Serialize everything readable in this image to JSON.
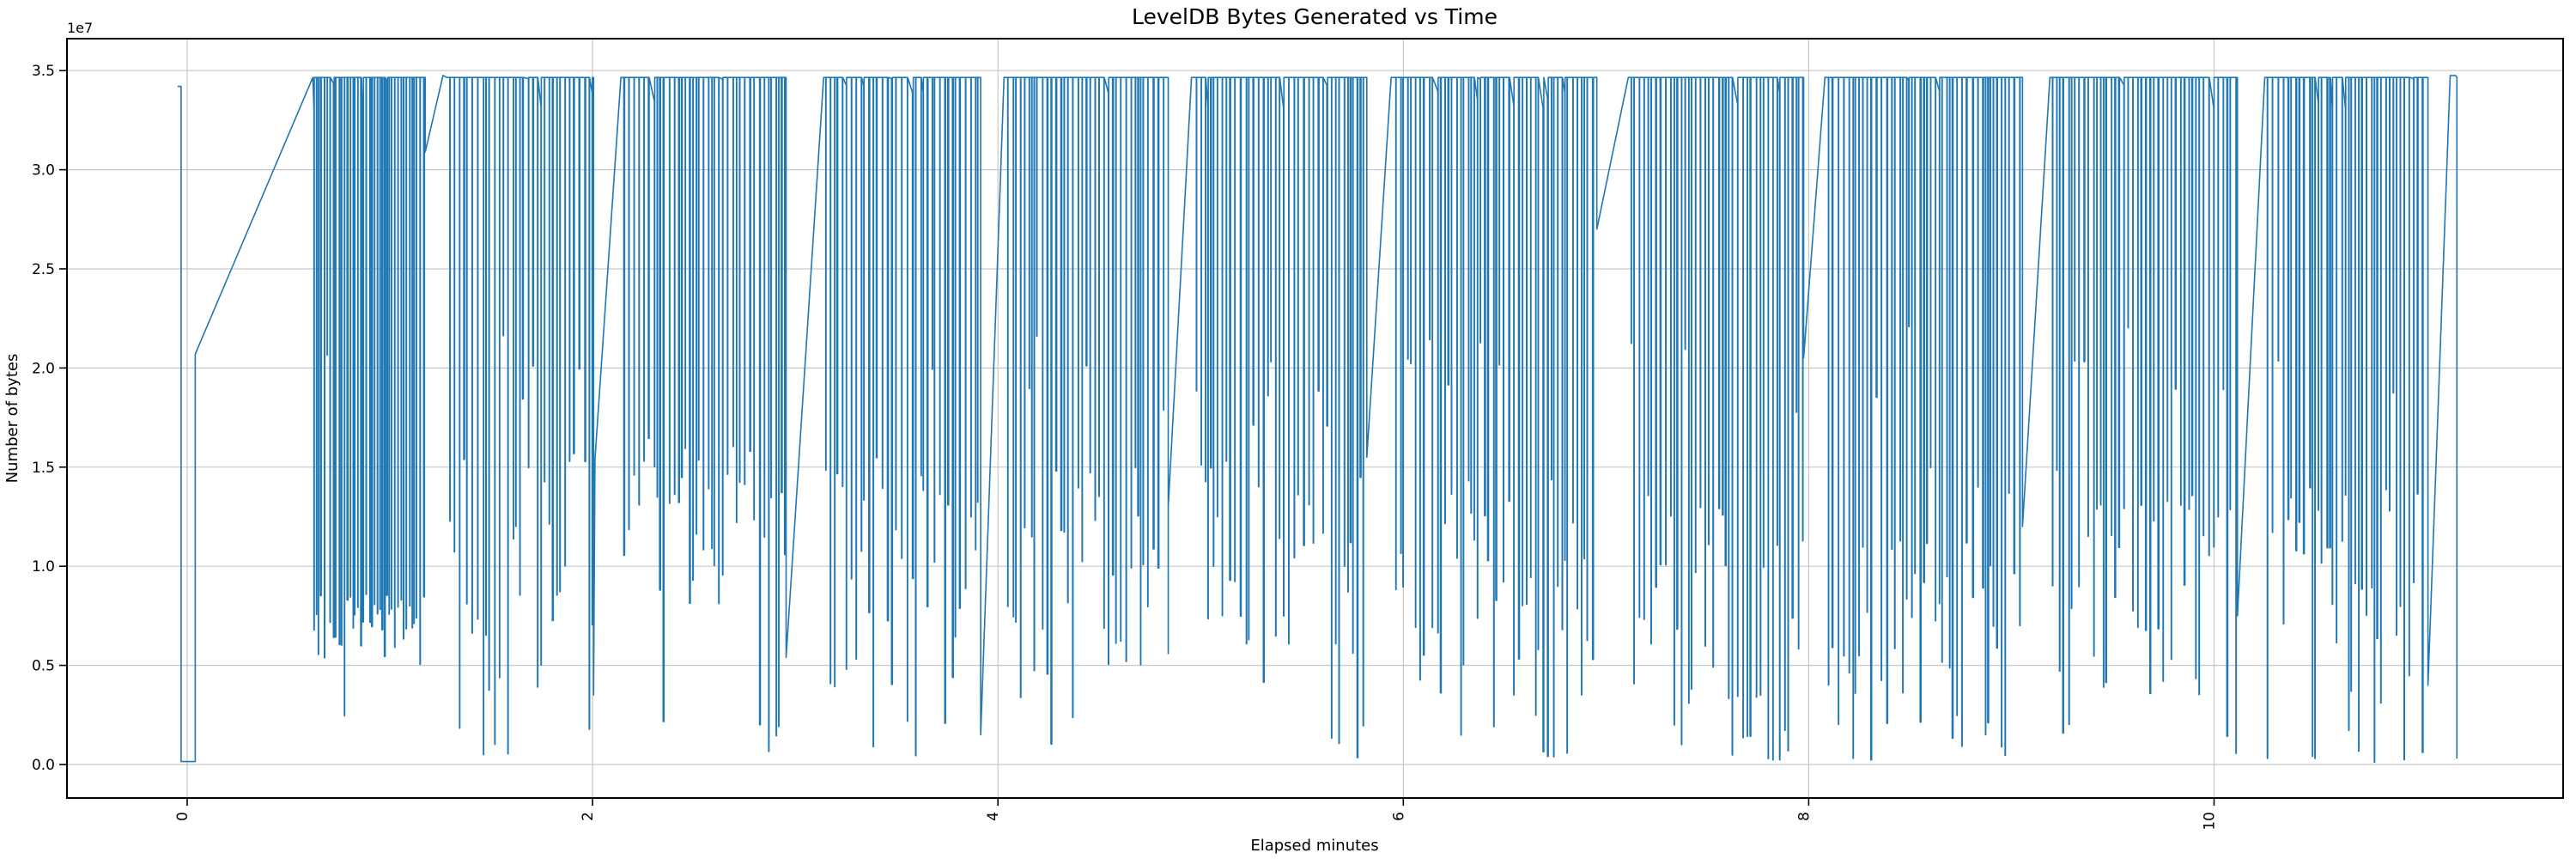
{
  "chart_data": {
    "type": "line",
    "title": "LevelDB Bytes Generated vs Time",
    "xlabel": "Elapsed minutes",
    "ylabel": "Number of bytes",
    "y_offset_label": "1e7",
    "legend": null,
    "grid": true,
    "xlim": [
      -0.593,
      11.722
    ],
    "ylim": [
      -1689000,
      36610000
    ],
    "x_tick_values": [
      0,
      2,
      4,
      6,
      8,
      10
    ],
    "x_tick_labels": [
      "0",
      "2",
      "4",
      "6",
      "8",
      "10"
    ],
    "x_tick_rotation_deg": 90,
    "y_tick_values": [
      0,
      5000000,
      10000000,
      15000000,
      20000000,
      25000000,
      30000000,
      35000000
    ],
    "y_tick_labels": [
      "0.0",
      "0.5",
      "1.0",
      "1.5",
      "2.0",
      "2.5",
      "3.0",
      "3.5"
    ],
    "line_color": "#1f77b4",
    "grid_color": "#c8c8c8",
    "spine_color": "#000000",
    "background_color": "#ffffff",
    "peak_value": 34650000,
    "random_seed": 7,
    "series_name": "bytes generated",
    "series_segments": [
      {
        "type": "points",
        "pts": [
          [
            -0.047,
            34200000
          ],
          [
            -0.03,
            34200000
          ],
          [
            -0.03,
            150000
          ],
          [
            0.04,
            150000
          ],
          [
            0.04,
            20700000
          ],
          [
            0.62,
            34650000
          ]
        ]
      },
      {
        "type": "dense",
        "x0": 0.62,
        "x1": 1.175,
        "rate": 78,
        "low": [
          4800000,
          8600000
        ],
        "p_deep": 0.07,
        "deep": [
          200000,
          3500000
        ],
        "p_shallow": 0.02,
        "shallow": [
          17000000,
          21000000
        ]
      },
      {
        "type": "points",
        "pts": [
          [
            1.175,
            30900000
          ],
          [
            1.262,
            34750000
          ],
          [
            1.282,
            34650000
          ]
        ]
      },
      {
        "type": "dense",
        "x0": 1.282,
        "x1": 2.005,
        "rate": 52,
        "low": [
          3000000,
          16000000
        ],
        "p_deep": 0.15,
        "deep": [
          100000,
          2500000
        ],
        "p_shallow": 0.1,
        "shallow": [
          17000000,
          23000000
        ]
      },
      {
        "type": "points",
        "pts": [
          [
            2.005,
            3500000
          ],
          [
            2.012,
            15400000
          ],
          [
            2.14,
            34650000
          ]
        ]
      },
      {
        "type": "dense",
        "x0": 2.14,
        "x1": 2.955,
        "rate": 52,
        "low": [
          8000000,
          16500000
        ],
        "p_deep": 0.16,
        "deep": [
          100000,
          3000000
        ],
        "p_shallow": 0.06,
        "shallow": [
          17500000,
          22500000
        ]
      },
      {
        "type": "points",
        "pts": [
          [
            2.955,
            5400000
          ],
          [
            3.14,
            34650000
          ]
        ]
      },
      {
        "type": "dense",
        "x0": 3.14,
        "x1": 3.915,
        "rate": 52,
        "low": [
          3000000,
          15500000
        ],
        "p_deep": 0.14,
        "deep": [
          100000,
          2500000
        ],
        "p_shallow": 0.08,
        "shallow": [
          17000000,
          23000000
        ]
      },
      {
        "type": "points",
        "pts": [
          [
            3.915,
            1500000
          ],
          [
            4.03,
            34650000
          ]
        ]
      },
      {
        "type": "dense",
        "x0": 4.03,
        "x1": 4.84,
        "rate": 52,
        "low": [
          3000000,
          15000000
        ],
        "p_deep": 0.13,
        "deep": [
          100000,
          2500000
        ],
        "p_shallow": 0.08,
        "shallow": [
          17000000,
          22500000
        ]
      },
      {
        "type": "points",
        "pts": [
          [
            4.84,
            13000000
          ],
          [
            4.955,
            34650000
          ]
        ]
      },
      {
        "type": "dense",
        "x0": 4.955,
        "x1": 5.82,
        "rate": 52,
        "low": [
          4000000,
          15500000
        ],
        "p_deep": 0.14,
        "deep": [
          100000,
          2500000
        ],
        "p_shallow": 0.07,
        "shallow": [
          17000000,
          22500000
        ]
      },
      {
        "type": "points",
        "pts": [
          [
            5.82,
            15500000
          ],
          [
            5.94,
            34650000
          ]
        ]
      },
      {
        "type": "dense",
        "x0": 5.94,
        "x1": 6.955,
        "rate": 52,
        "low": [
          3500000,
          14500000
        ],
        "p_deep": 0.13,
        "deep": [
          100000,
          2500000
        ],
        "p_shallow": 0.09,
        "shallow": [
          17000000,
          23000000
        ]
      },
      {
        "type": "points",
        "pts": [
          [
            6.955,
            27000000
          ],
          [
            7.11,
            34650000
          ]
        ]
      },
      {
        "type": "dense",
        "x0": 7.11,
        "x1": 7.975,
        "rate": 52,
        "low": [
          3000000,
          14000000
        ],
        "p_deep": 0.2,
        "deep": [
          100000,
          2000000
        ],
        "p_shallow": 0.07,
        "shallow": [
          17000000,
          22000000
        ]
      },
      {
        "type": "points",
        "pts": [
          [
            7.975,
            20500000
          ],
          [
            8.08,
            34650000
          ]
        ]
      },
      {
        "type": "dense",
        "x0": 8.08,
        "x1": 9.055,
        "rate": 52,
        "low": [
          3500000,
          15000000
        ],
        "p_deep": 0.16,
        "deep": [
          100000,
          2500000
        ],
        "p_shallow": 0.07,
        "shallow": [
          17500000,
          22500000
        ]
      },
      {
        "type": "points",
        "pts": [
          [
            9.055,
            12000000
          ],
          [
            9.19,
            34650000
          ]
        ]
      },
      {
        "type": "dense",
        "x0": 9.19,
        "x1": 10.115,
        "rate": 52,
        "low": [
          3000000,
          15000000
        ],
        "p_deep": 0.16,
        "deep": [
          100000,
          2500000
        ],
        "p_shallow": 0.07,
        "shallow": [
          17000000,
          22500000
        ]
      },
      {
        "type": "points",
        "pts": [
          [
            10.115,
            7500000
          ],
          [
            10.25,
            34650000
          ]
        ]
      },
      {
        "type": "dense",
        "x0": 10.25,
        "x1": 11.055,
        "rate": 52,
        "low": [
          3000000,
          14500000
        ],
        "p_deep": 0.17,
        "deep": [
          100000,
          2500000
        ],
        "p_shallow": 0.06,
        "shallow": [
          17000000,
          22000000
        ]
      },
      {
        "type": "points",
        "pts": [
          [
            11.055,
            4000000
          ],
          [
            11.165,
            34750000
          ],
          [
            11.192,
            34750000
          ],
          [
            11.198,
            34650000
          ],
          [
            11.198,
            300000
          ]
        ]
      }
    ]
  }
}
